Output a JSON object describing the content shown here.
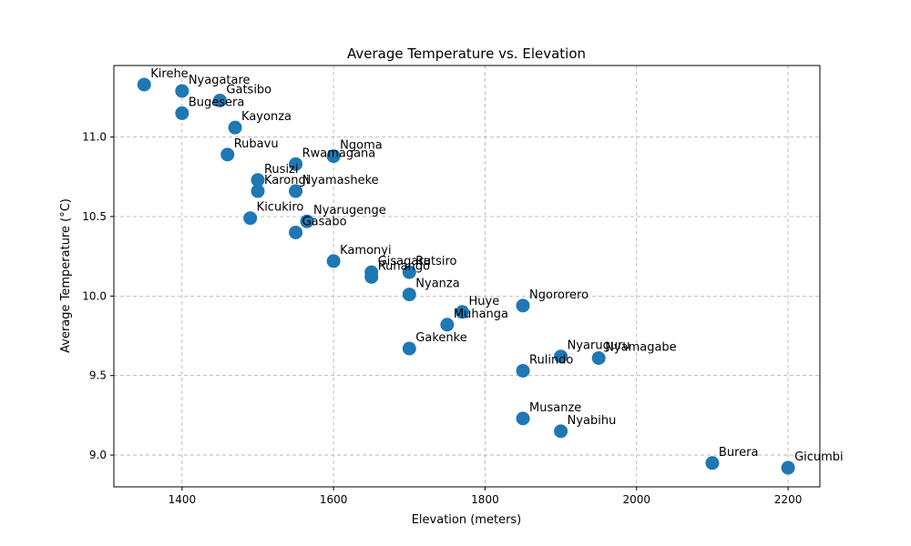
{
  "chart_data": {
    "type": "scatter",
    "title": "Average Temperature vs. Elevation",
    "xlabel": "Elevation (meters)",
    "ylabel": "Average Temperature (°C)",
    "xlim": [
      1310,
      2242
    ],
    "ylim": [
      8.8,
      11.45
    ],
    "xticks": [
      1400,
      1600,
      1800,
      2000,
      2200
    ],
    "yticks": [
      9.0,
      9.5,
      10.0,
      10.5,
      11.0
    ],
    "grid": true,
    "point_color": "#1f77b4",
    "points": [
      {
        "label": "Kirehe",
        "x": 1350,
        "y": 11.33
      },
      {
        "label": "Nyagatare",
        "x": 1400,
        "y": 11.29
      },
      {
        "label": "Gatsibo",
        "x": 1450,
        "y": 11.23
      },
      {
        "label": "Bugesera",
        "x": 1400,
        "y": 11.15
      },
      {
        "label": "Kayonza",
        "x": 1470,
        "y": 11.06
      },
      {
        "label": "Rubavu",
        "x": 1460,
        "y": 10.89
      },
      {
        "label": "Ngoma",
        "x": 1600,
        "y": 10.88
      },
      {
        "label": "Rwamagana",
        "x": 1550,
        "y": 10.83
      },
      {
        "label": "Rusizi",
        "x": 1500,
        "y": 10.73
      },
      {
        "label": "Karongi",
        "x": 1500,
        "y": 10.66
      },
      {
        "label": "Nyamasheke",
        "x": 1550,
        "y": 10.66
      },
      {
        "label": "Kicukiro",
        "x": 1490,
        "y": 10.49
      },
      {
        "label": "Nyarugenge",
        "x": 1565,
        "y": 10.47
      },
      {
        "label": "Gasabo",
        "x": 1550,
        "y": 10.4
      },
      {
        "label": "Kamonyi",
        "x": 1600,
        "y": 10.22
      },
      {
        "label": "Gisagara",
        "x": 1650,
        "y": 10.15
      },
      {
        "label": "Rutsiro",
        "x": 1700,
        "y": 10.15
      },
      {
        "label": "Ruhango",
        "x": 1650,
        "y": 10.12
      },
      {
        "label": "Nyanza",
        "x": 1700,
        "y": 10.01
      },
      {
        "label": "Ngororero",
        "x": 1850,
        "y": 9.94
      },
      {
        "label": "Huye",
        "x": 1770,
        "y": 9.9
      },
      {
        "label": "Muhanga",
        "x": 1750,
        "y": 9.82
      },
      {
        "label": "Gakenke",
        "x": 1700,
        "y": 9.67
      },
      {
        "label": "Nyaruguru",
        "x": 1900,
        "y": 9.62
      },
      {
        "label": "Nyamagabe",
        "x": 1950,
        "y": 9.61
      },
      {
        "label": "Rulindo",
        "x": 1850,
        "y": 9.53
      },
      {
        "label": "Musanze",
        "x": 1850,
        "y": 9.23
      },
      {
        "label": "Nyabihu",
        "x": 1900,
        "y": 9.15
      },
      {
        "label": "Burera",
        "x": 2100,
        "y": 8.95
      },
      {
        "label": "Gicumbi",
        "x": 2200,
        "y": 8.92
      }
    ]
  }
}
